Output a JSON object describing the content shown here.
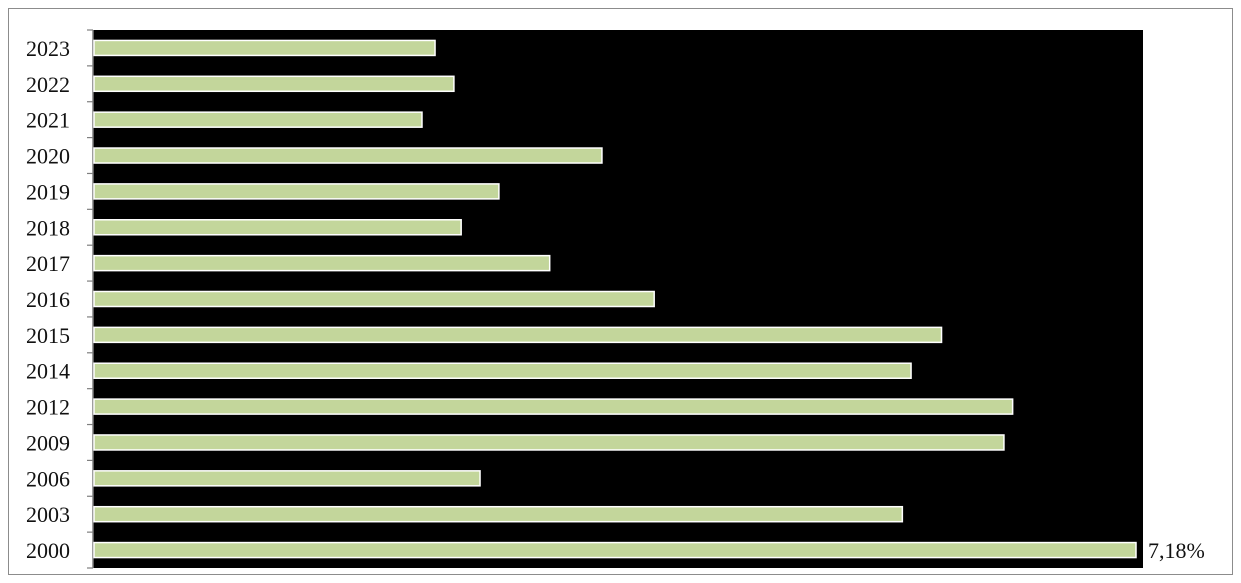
{
  "chart_data": {
    "type": "bar",
    "orientation": "horizontal",
    "categories": [
      "2023",
      "2022",
      "2021",
      "2020",
      "2019",
      "2018",
      "2017",
      "2016",
      "2015",
      "2014",
      "2012",
      "2009",
      "2006",
      "2003",
      "2000"
    ],
    "values": [
      2.35,
      2.48,
      2.26,
      3.5,
      2.79,
      2.53,
      3.14,
      3.86,
      5.84,
      5.63,
      6.33,
      6.27,
      2.66,
      5.57,
      7.18
    ],
    "data_labels": [
      {
        "category": "2000",
        "text": "7,18%"
      }
    ],
    "xlim": [
      0,
      7.18
    ],
    "grid": false,
    "legend": "none",
    "colors": {
      "plot_background": "#000000",
      "bar_fill": "#c3d69b",
      "bar_stroke": "#ffffff",
      "axis": "#7f7f7f"
    }
  }
}
